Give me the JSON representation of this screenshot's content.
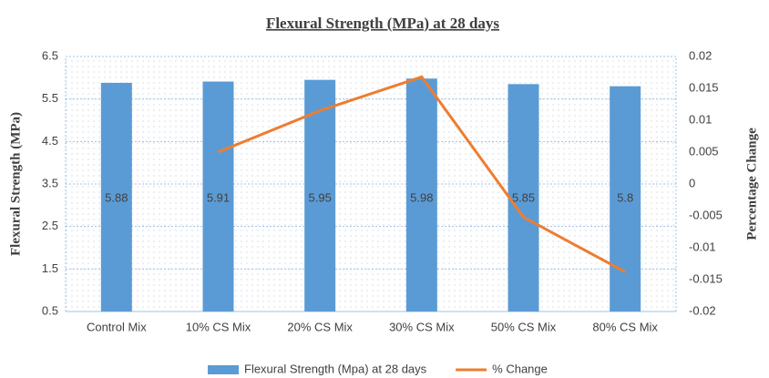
{
  "chart_data": {
    "type": "bar_line",
    "title": "Flexural Strength (MPa) at 28 days",
    "y_label": "Flexural Strength (MPa)",
    "y2_label": "Percentage Change",
    "categories": [
      "Control Mix",
      "10% CS Mix",
      "20% CS Mix",
      "30% CS Mix",
      "50% CS Mix",
      "80% CS Mix"
    ],
    "series": [
      {
        "name": "Flexural Strength (Mpa) at 28 days",
        "type": "bar",
        "color": "#5b9bd5",
        "values": [
          5.88,
          5.91,
          5.95,
          5.98,
          5.85,
          5.8
        ]
      },
      {
        "name": "% Change",
        "type": "line",
        "axis": "y2",
        "color": "#ed7d31",
        "values": [
          null,
          0.005,
          0.0115,
          0.0168,
          -0.0052,
          -0.0138
        ]
      }
    ],
    "ylim": [
      0.5,
      6.5
    ],
    "yticks": [
      0.5,
      1.5,
      2.5,
      3.5,
      4.5,
      5.5,
      6.5
    ],
    "y2lim": [
      -0.02,
      0.02
    ],
    "y2ticks": [
      -0.02,
      -0.015,
      -0.01,
      -0.005,
      0,
      0.005,
      0.01,
      0.015,
      0.02
    ],
    "grid": true,
    "legend": "bottom"
  }
}
